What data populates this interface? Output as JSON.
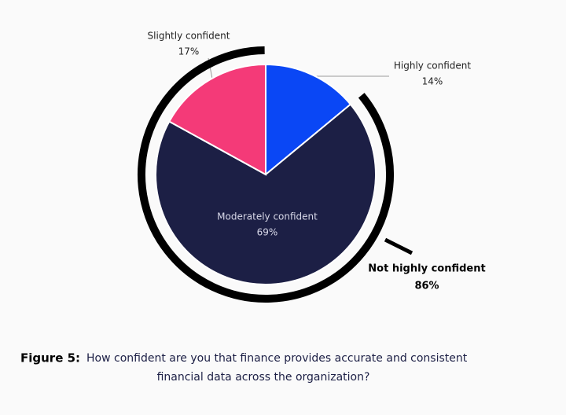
{
  "chart_data": {
    "type": "pie",
    "categories": [
      "Highly confident",
      "Moderately confident",
      "Slightly confident"
    ],
    "values": [
      14,
      69,
      17
    ],
    "value_labels": [
      "14%",
      "69%",
      "17%"
    ],
    "colors": [
      "#0a47f5",
      "#1c1f45",
      "#f43a78"
    ],
    "group": {
      "label": "Not highly confident",
      "value": 86,
      "value_label": "86%",
      "color": "#000000"
    }
  },
  "caption": {
    "label": "Figure 5:",
    "lines": [
      "How confident are you that finance provides accurate and consistent",
      "financial data across the organization?"
    ]
  }
}
